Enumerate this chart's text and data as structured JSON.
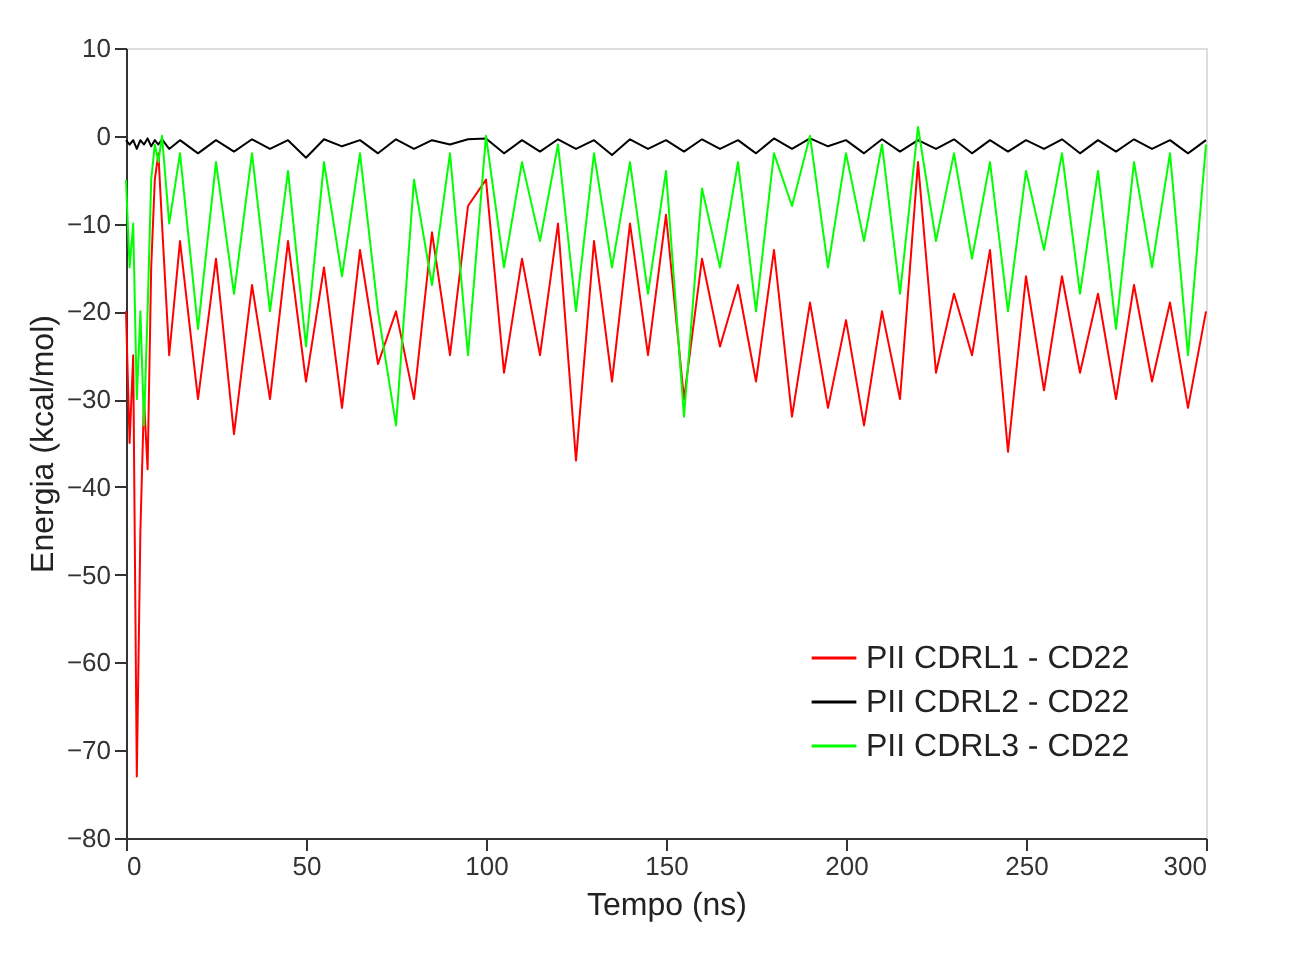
{
  "chart_data": {
    "type": "line",
    "xlabel": "Tempo (ns)",
    "ylabel": "Energia (kcal/mol)",
    "xlim": [
      0,
      300
    ],
    "xticks": [
      0,
      50,
      100,
      150,
      200,
      250,
      300
    ],
    "ylim": [
      -80,
      10
    ],
    "yticks": [
      -80,
      -70,
      -60,
      -50,
      -40,
      -30,
      -20,
      -10,
      0,
      10
    ],
    "grid": false,
    "legend": "bottom right",
    "marker": "none",
    "line_style": "solid",
    "x": [
      0,
      1,
      2,
      3,
      4,
      5,
      6,
      7,
      8,
      9,
      10,
      12,
      15,
      20,
      25,
      30,
      35,
      40,
      45,
      50,
      55,
      60,
      65,
      70,
      75,
      80,
      85,
      90,
      95,
      100,
      105,
      110,
      115,
      120,
      125,
      130,
      135,
      140,
      145,
      150,
      155,
      160,
      165,
      170,
      175,
      180,
      185,
      190,
      195,
      200,
      205,
      210,
      215,
      220,
      225,
      230,
      235,
      240,
      245,
      250,
      255,
      260,
      265,
      270,
      275,
      280,
      285,
      290,
      295,
      300
    ],
    "series": [
      {
        "name": "PII CDRL1 - CD22",
        "color": "#ff0000",
        "values": [
          -20,
          -35,
          -25,
          -73,
          -45,
          -30,
          -38,
          -15,
          -5,
          -2,
          -10,
          -25,
          -12,
          -30,
          -14,
          -34,
          -17,
          -30,
          -12,
          -28,
          -15,
          -31,
          -13,
          -26,
          -20,
          -30,
          -11,
          -25,
          -8,
          -5,
          -27,
          -14,
          -25,
          -10,
          -37,
          -12,
          -28,
          -10,
          -25,
          -9,
          -30,
          -14,
          -24,
          -17,
          -28,
          -13,
          -32,
          -19,
          -31,
          -21,
          -33,
          -20,
          -30,
          -3,
          -27,
          -18,
          -25,
          -13,
          -36,
          -16,
          -29,
          -16,
          -27,
          -18,
          -30,
          -17,
          -28,
          -19,
          -31,
          -20
        ]
      },
      {
        "name": "PII CDRL2 - CD22",
        "color": "#000000",
        "values": [
          -0.5,
          -1,
          -0.5,
          -1.5,
          -0.5,
          -1,
          -0.3,
          -1.2,
          -0.5,
          -1,
          -0.4,
          -1.5,
          -0.5,
          -2,
          -0.5,
          -1.8,
          -0.4,
          -1.5,
          -0.5,
          -2.5,
          -0.4,
          -1.2,
          -0.5,
          -2,
          -0.4,
          -1.5,
          -0.5,
          -1,
          -0.4,
          -0.3,
          -2,
          -0.5,
          -1.8,
          -0.4,
          -1.5,
          -0.5,
          -2.2,
          -0.4,
          -1.5,
          -0.5,
          -1.8,
          -0.4,
          -1.5,
          -0.5,
          -2,
          -0.3,
          -1.5,
          -0.3,
          -1.2,
          -0.5,
          -2,
          -0.4,
          -1.8,
          -0.5,
          -1.5,
          -0.4,
          -2,
          -0.5,
          -1.8,
          -0.5,
          -1.5,
          -0.4,
          -2,
          -0.5,
          -1.8,
          -0.4,
          -1.5,
          -0.5,
          -2,
          -0.5
        ]
      },
      {
        "name": "PII CDRL3 - CD22",
        "color": "#00ff00",
        "values": [
          -5,
          -15,
          -10,
          -30,
          -20,
          -33,
          -20,
          -5,
          -1,
          -3,
          0,
          -10,
          -2,
          -22,
          -3,
          -18,
          -2,
          -20,
          -4,
          -24,
          -3,
          -16,
          -2,
          -20,
          -33,
          -5,
          -17,
          -2,
          -25,
          0,
          -15,
          -3,
          -12,
          -1,
          -20,
          -2,
          -15,
          -3,
          -18,
          -4,
          -32,
          -6,
          -15,
          -3,
          -20,
          -2,
          -8,
          0,
          -15,
          -2,
          -12,
          -1,
          -18,
          1,
          -12,
          -2,
          -14,
          -3,
          -20,
          -4,
          -13,
          -2,
          -18,
          -4,
          -22,
          -3,
          -15,
          -2,
          -25,
          -1
        ]
      }
    ]
  }
}
